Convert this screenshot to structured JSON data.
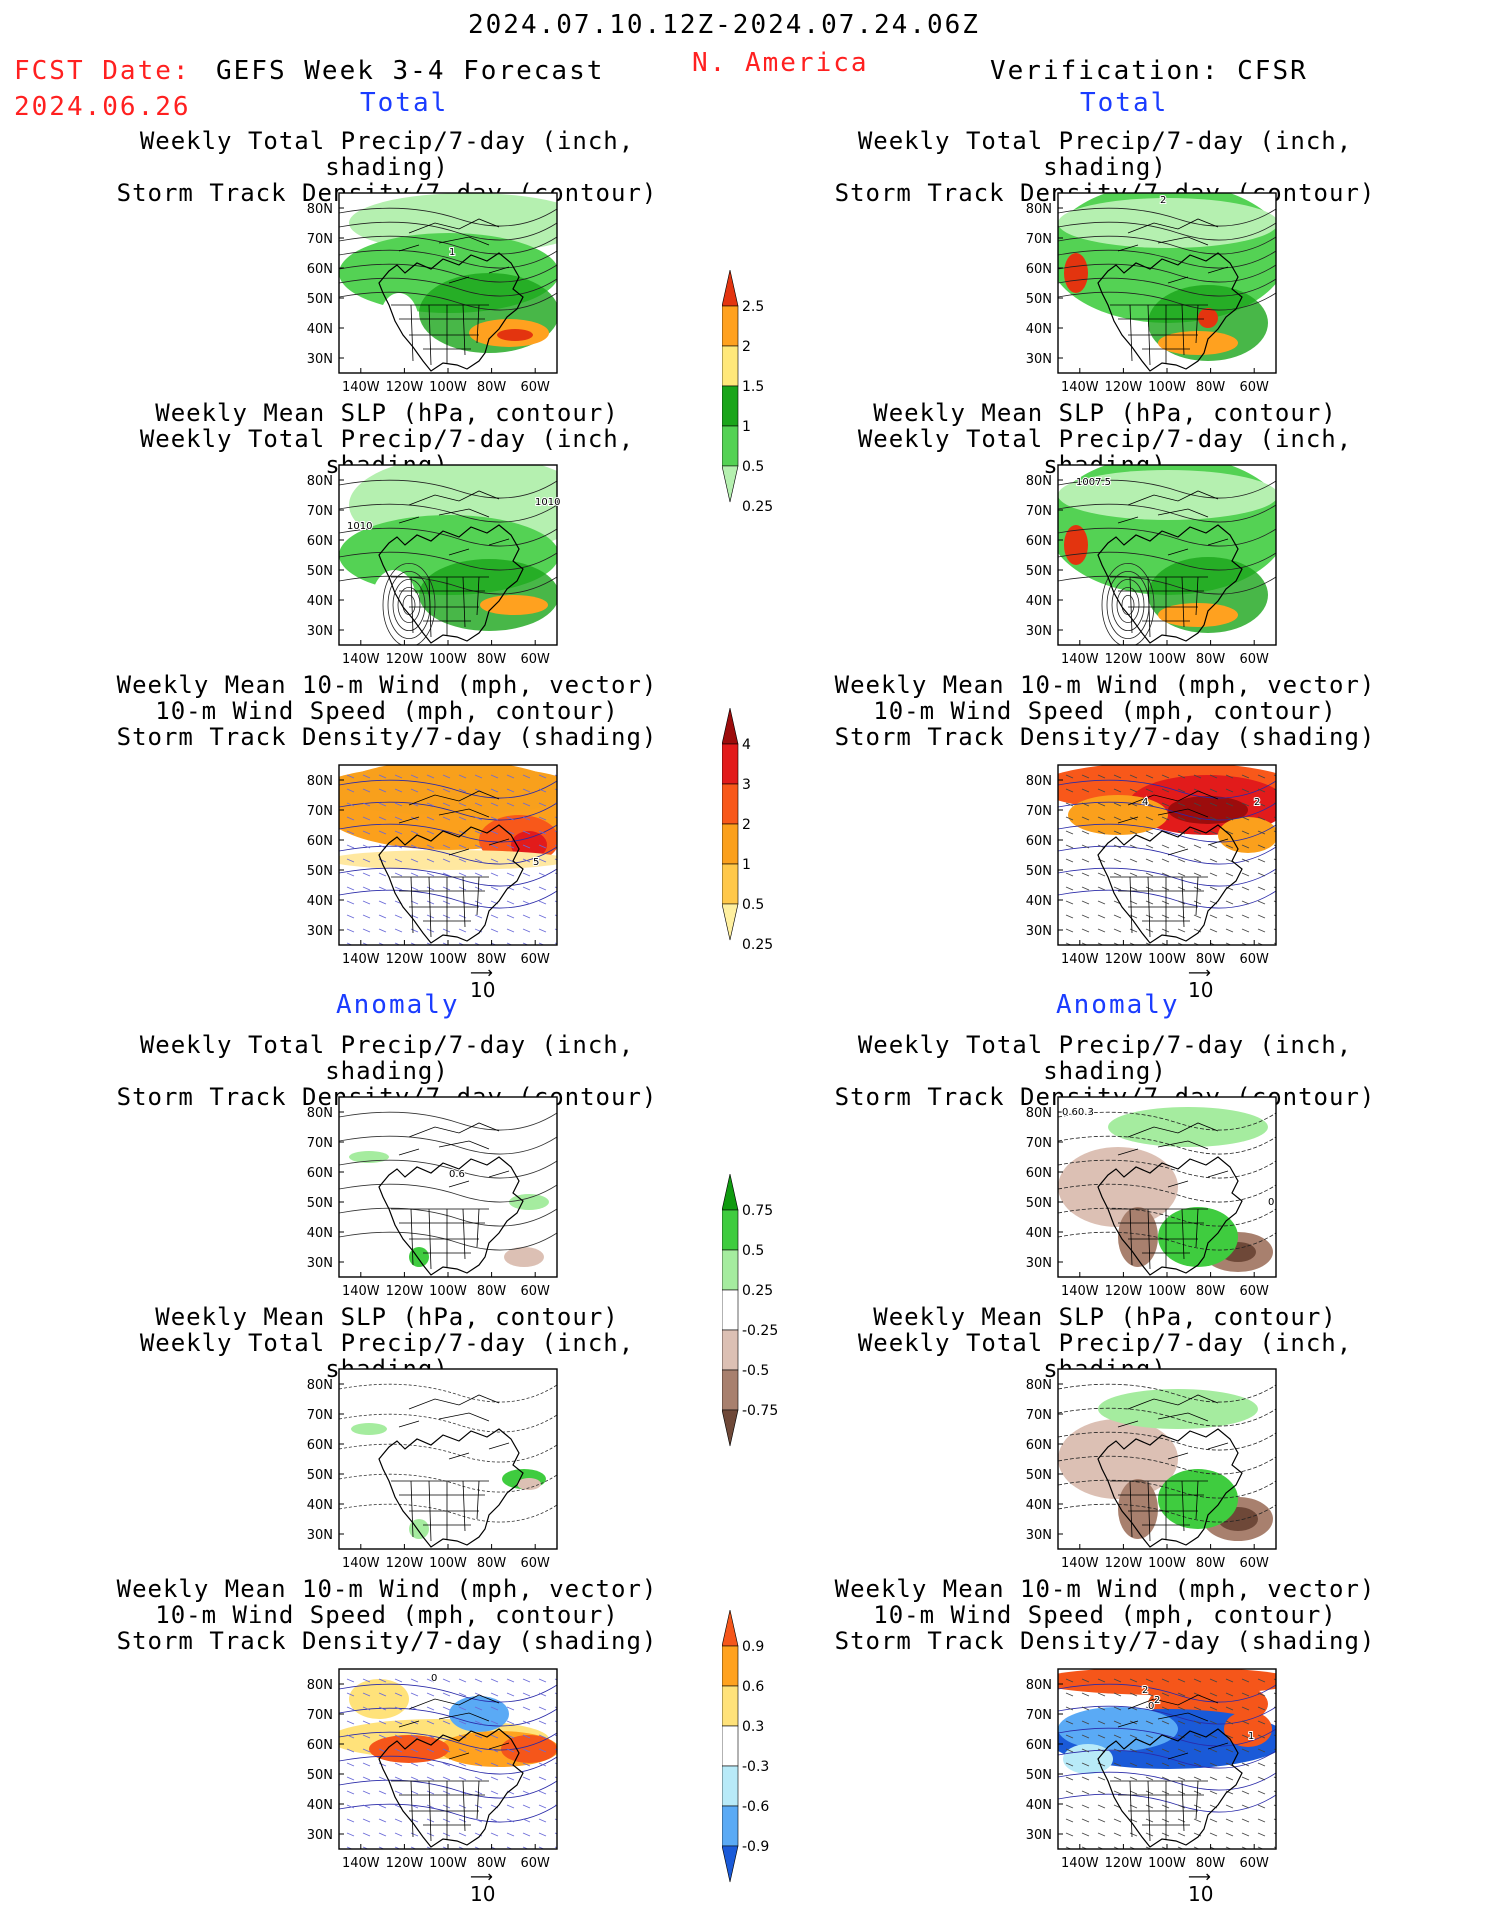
{
  "header": {
    "period": "2024.07.10.12Z-2024.07.24.06Z",
    "fcst_label": "FCST Date:",
    "fcst_date": "2024.06.26",
    "model": "GEFS Week 3-4 Forecast",
    "region": "N. America",
    "verification": "Verification: CFSR"
  },
  "sections": {
    "total_left": "Total",
    "total_right": "Total",
    "anomaly_left": "Anomaly",
    "anomaly_right": "Anomaly"
  },
  "titles": {
    "precip_storm": [
      "Weekly Total Precip/7-day (inch, shading)",
      "Storm Track Density/7-day (contour)"
    ],
    "slp_precip": [
      "Weekly Mean SLP (hPa, contour)",
      "Weekly Total Precip/7-day (inch, shading)"
    ],
    "wind_storm": [
      "Weekly Mean 10-m Wind (mph, vector)",
      "10-m Wind Speed (mph, contour)",
      "Storm Track Density/7-day (shading)"
    ]
  },
  "axes": {
    "lat_labels": [
      "80N",
      "70N",
      "60N",
      "50N",
      "40N",
      "30N"
    ],
    "lon_labels": [
      "140W",
      "120W",
      "100W",
      "80W",
      "60W"
    ]
  },
  "vector_reference": "10",
  "map_annotations": {
    "fc_total_precip": [
      "1"
    ],
    "fc_total_slp": [
      "1010",
      "1010"
    ],
    "fc_total_wind": [
      "5"
    ],
    "vf_total_precip": [
      "2"
    ],
    "vf_total_slp": [
      "1007.5"
    ],
    "vf_total_wind": [
      "4",
      "2"
    ],
    "fc_anom_precip": [
      "0.6"
    ],
    "fc_anom_wind": [
      "0"
    ],
    "vf_anom_precip": [
      "0.60.3",
      "0"
    ],
    "vf_anom_wind": [
      "2",
      "2",
      "0",
      "1"
    ]
  },
  "colorbars": {
    "precip_total": {
      "labels": [
        "2.5",
        "2",
        "1.5",
        "1",
        "0.5",
        "0.25"
      ],
      "colors": [
        "#e3340f",
        "#ffa11f",
        "#ffe87a",
        "#1aa51a",
        "#54d254",
        "#b5f0b0"
      ]
    },
    "storm_total": {
      "labels": [
        "4",
        "3",
        "2",
        "1",
        "0.5",
        "0.25"
      ],
      "colors": [
        "#9c0c0c",
        "#e21b1b",
        "#f8581a",
        "#fba01c",
        "#ffc84a",
        "#fff0a0"
      ]
    },
    "precip_anom": {
      "labels": [
        "0.75",
        "0.5",
        "0.25",
        "-0.25",
        "-0.5",
        "-0.75"
      ],
      "colors": [
        "#0f9a0f",
        "#3fcc3f",
        "#a5ec9f",
        "#ffffff",
        "#dcc0b4",
        "#a8806e",
        "#6e4838"
      ]
    },
    "storm_anom": {
      "labels": [
        "0.9",
        "0.6",
        "0.3",
        "-0.3",
        "-0.6",
        "-0.9"
      ],
      "colors": [
        "#f5561a",
        "#ffa21f",
        "#ffe27a",
        "#ffffff",
        "#b8eaf8",
        "#5aaaf5",
        "#1a5ad8"
      ]
    }
  }
}
